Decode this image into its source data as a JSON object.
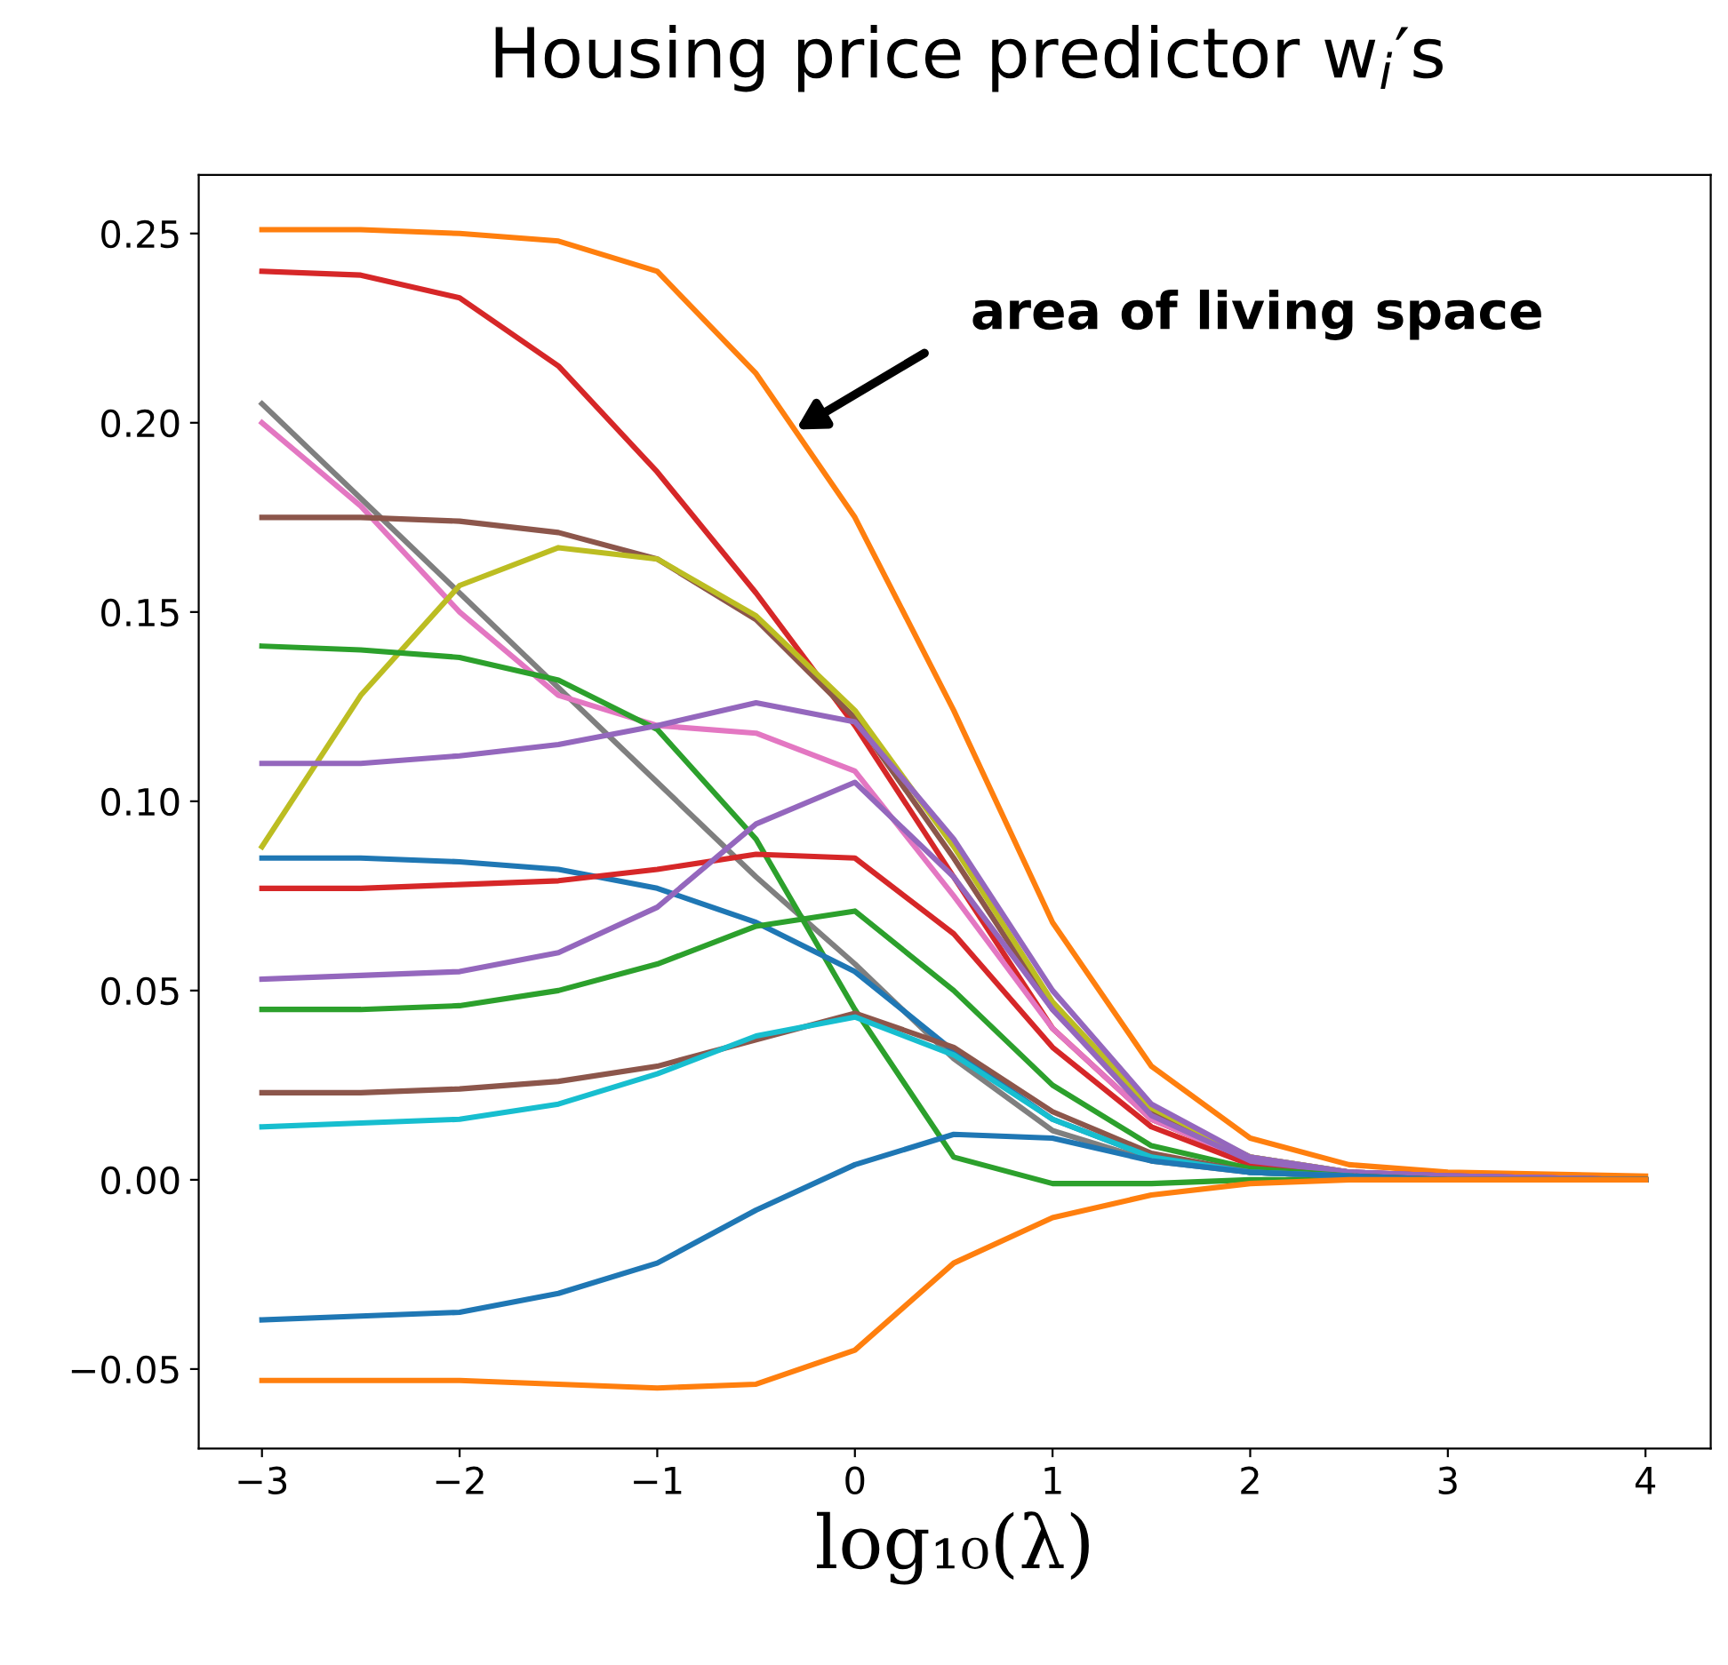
{
  "chart_data": {
    "type": "line",
    "title": "Housing price predictor w$_{i}$′s",
    "xlabel": "log₁₀(λ)",
    "x": [
      -3,
      -2.5,
      -2,
      -1.5,
      -1,
      -0.5,
      0,
      0.5,
      1,
      1.5,
      2,
      2.5,
      3,
      4
    ],
    "xlim": [
      -3.32,
      4.33
    ],
    "ylim": [
      -0.071,
      0.2655
    ],
    "xticks": [
      {
        "value": -3,
        "label": "−3"
      },
      {
        "value": -2,
        "label": "−2"
      },
      {
        "value": -1,
        "label": "−1"
      },
      0,
      1,
      2,
      3,
      4
    ],
    "yticks": [
      {
        "value": -0.05,
        "label": "−0.05"
      },
      {
        "value": 0.0,
        "label": "0.00"
      },
      {
        "value": 0.05,
        "label": "0.05"
      },
      {
        "value": 0.1,
        "label": "0.10"
      },
      {
        "value": 0.15,
        "label": "0.15"
      },
      {
        "value": 0.2,
        "label": "0.20"
      },
      {
        "value": 0.25,
        "label": "0.25"
      }
    ],
    "grid": false,
    "legend": false,
    "marker": "none",
    "line_style": "solid",
    "annotations": [
      "area of living space"
    ],
    "series": [
      {
        "color": "#ff7f0e",
        "values": [
          0.251,
          0.251,
          0.25,
          0.248,
          0.24,
          0.213,
          0.175,
          0.124,
          0.068,
          0.03,
          0.011,
          0.004,
          0.002,
          0.001
        ]
      },
      {
        "color": "#d62728",
        "values": [
          0.24,
          0.239,
          0.233,
          0.215,
          0.187,
          0.155,
          0.12,
          0.08,
          0.04,
          0.016,
          0.005,
          0.002,
          0.001,
          0.0
        ]
      },
      {
        "color": "#7f7f7f",
        "values": [
          0.205,
          0.18,
          0.155,
          0.13,
          0.105,
          0.08,
          0.057,
          0.032,
          0.013,
          0.005,
          0.002,
          0.001,
          0.0,
          0.0
        ]
      },
      {
        "color": "#e377c2",
        "values": [
          0.2,
          0.178,
          0.15,
          0.128,
          0.12,
          0.118,
          0.108,
          0.075,
          0.04,
          0.016,
          0.005,
          0.002,
          0.001,
          0.0
        ]
      },
      {
        "color": "#8c564b",
        "values": [
          0.175,
          0.175,
          0.174,
          0.171,
          0.164,
          0.148,
          0.122,
          0.085,
          0.045,
          0.018,
          0.006,
          0.002,
          0.001,
          0.0
        ]
      },
      {
        "color": "#bcbd22",
        "values": [
          0.088,
          0.128,
          0.157,
          0.167,
          0.164,
          0.149,
          0.124,
          0.088,
          0.047,
          0.019,
          0.006,
          0.002,
          null,
          null
        ]
      },
      {
        "color": "#2ca02c",
        "values": [
          0.141,
          0.14,
          0.138,
          0.132,
          0.119,
          0.09,
          0.045,
          0.006,
          -0.001,
          -0.001,
          0.0,
          0.0,
          0.0,
          0.0
        ]
      },
      {
        "color": "#9467bd",
        "values": [
          0.11,
          0.11,
          0.112,
          0.115,
          0.12,
          0.126,
          0.121,
          0.09,
          0.05,
          0.02,
          0.006,
          0.002,
          0.001,
          0.0
        ]
      },
      {
        "color": "#1f77b4",
        "values": [
          0.085,
          0.085,
          0.084,
          0.082,
          0.077,
          0.068,
          0.055,
          0.034,
          0.016,
          0.006,
          0.002,
          0.001,
          0.0,
          0.0
        ]
      },
      {
        "color": "#d62728",
        "values": [
          0.077,
          0.077,
          0.078,
          0.079,
          0.082,
          0.086,
          0.085,
          0.065,
          0.035,
          0.014,
          0.004,
          0.001,
          0.0,
          0.0
        ]
      },
      {
        "color": "#9467bd",
        "values": [
          0.053,
          0.054,
          0.055,
          0.06,
          0.072,
          0.094,
          0.105,
          0.08,
          0.045,
          0.017,
          0.005,
          0.002,
          0.001,
          0.0
        ]
      },
      {
        "color": "#2ca02c",
        "values": [
          0.045,
          0.045,
          0.046,
          0.05,
          0.057,
          0.067,
          0.071,
          0.05,
          0.025,
          0.009,
          0.003,
          0.001,
          0.0,
          0.0
        ]
      },
      {
        "color": "#8c564b",
        "values": [
          0.023,
          0.023,
          0.024,
          0.026,
          0.03,
          0.037,
          0.044,
          0.035,
          0.018,
          0.007,
          0.002,
          0.001,
          0.0,
          0.0
        ]
      },
      {
        "color": "#17becf",
        "values": [
          0.014,
          0.015,
          0.016,
          0.02,
          0.028,
          0.038,
          0.043,
          0.033,
          0.016,
          0.006,
          0.002,
          0.001,
          null,
          null
        ]
      },
      {
        "color": "#1f77b4",
        "values": [
          -0.037,
          -0.036,
          -0.035,
          -0.03,
          -0.022,
          -0.008,
          0.004,
          0.012,
          0.011,
          0.005,
          0.002,
          0.001,
          0.0,
          0.0
        ]
      },
      {
        "color": "#ff7f0e",
        "values": [
          -0.053,
          -0.053,
          -0.053,
          -0.054,
          -0.055,
          -0.054,
          -0.045,
          -0.022,
          -0.01,
          -0.004,
          -0.001,
          0.0,
          0.0,
          0.0
        ]
      }
    ]
  }
}
